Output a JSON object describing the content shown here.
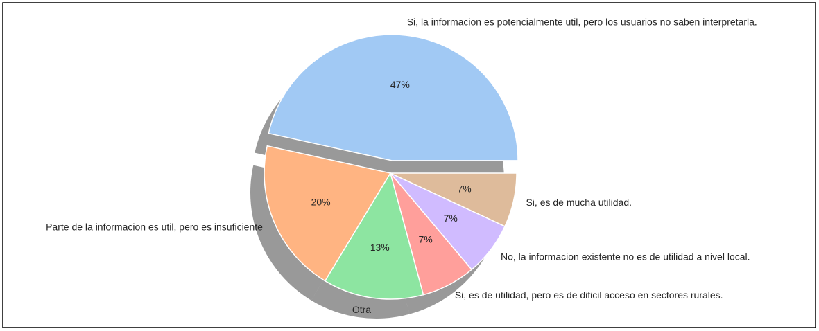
{
  "chart_data": {
    "type": "pie",
    "categories": [
      "Si, la informacion es potencialmente util, pero los usuarios no saben interpretarla.",
      "Parte de la informacion es util, pero es insuficiente",
      "Otra",
      "Si, es de utilidad, pero es de dificil acceso en sectores rurales.",
      "No, la informacion existente no es de utilidad a nivel local.",
      "Si, es de mucha utilidad."
    ],
    "values": [
      47,
      20,
      13,
      7,
      7,
      7
    ],
    "value_labels": [
      "47%",
      "20%",
      "13%",
      "7%",
      "7%",
      "7%"
    ],
    "colors": [
      "#a1c9f4",
      "#ffb482",
      "#8de5a1",
      "#ff9f9b",
      "#d0bbff",
      "#debb9b"
    ],
    "explode": [
      0.1,
      0,
      0,
      0,
      0,
      0
    ],
    "shadow": true
  }
}
